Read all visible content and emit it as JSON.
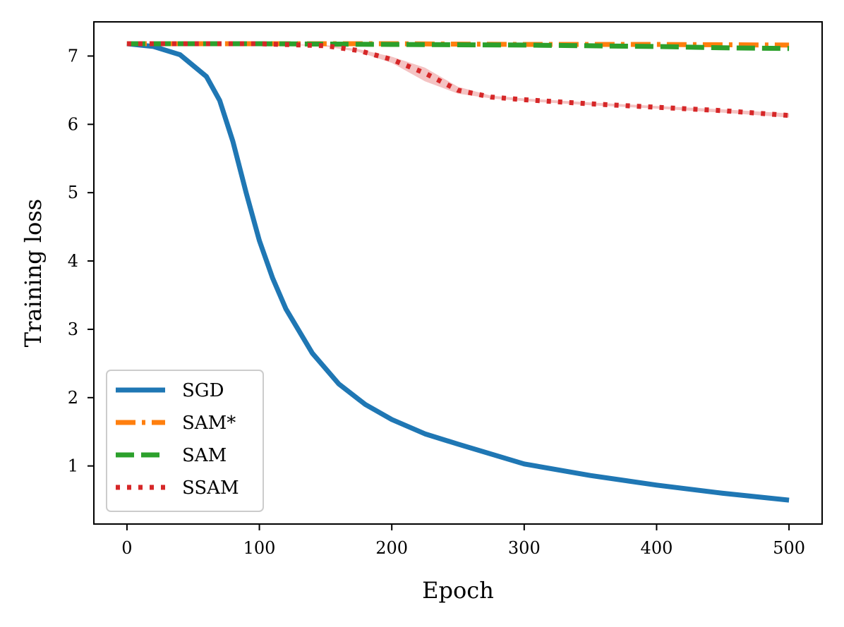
{
  "chart_data": {
    "type": "line",
    "title": "",
    "xlabel": "Epoch",
    "ylabel": "Training loss",
    "xlim": [
      -25,
      525
    ],
    "ylim": [
      0.15,
      7.5
    ],
    "xticks": [
      0,
      100,
      200,
      300,
      400,
      500
    ],
    "yticks": [
      1,
      2,
      3,
      4,
      5,
      6,
      7
    ],
    "grid": false,
    "legend_position": "lower-left",
    "series": [
      {
        "name": "SGD",
        "color": "#1f77b4",
        "style": "solid",
        "x": [
          0,
          20,
          40,
          60,
          70,
          80,
          90,
          100,
          110,
          120,
          140,
          160,
          180,
          200,
          225,
          250,
          300,
          350,
          400,
          450,
          500
        ],
        "y": [
          7.18,
          7.14,
          7.02,
          6.7,
          6.35,
          5.75,
          5.0,
          4.3,
          3.75,
          3.3,
          2.65,
          2.2,
          1.9,
          1.68,
          1.47,
          1.32,
          1.03,
          0.86,
          0.72,
          0.6,
          0.5
        ]
      },
      {
        "name": "SAM*",
        "color": "#ff7f0e",
        "style": "dashdot",
        "x": [
          0,
          100,
          200,
          300,
          400,
          500
        ],
        "y": [
          7.18,
          7.18,
          7.18,
          7.17,
          7.17,
          7.16
        ]
      },
      {
        "name": "SAM",
        "color": "#2ca02c",
        "style": "dashed",
        "x": [
          0,
          100,
          200,
          300,
          350,
          400,
          450,
          500
        ],
        "y": [
          7.18,
          7.18,
          7.17,
          7.16,
          7.15,
          7.14,
          7.12,
          7.11
        ]
      },
      {
        "name": "SSAM",
        "color": "#d62728",
        "style": "dotted",
        "x": [
          0,
          100,
          150,
          175,
          200,
          225,
          250,
          275,
          300,
          350,
          400,
          450,
          500
        ],
        "y": [
          7.18,
          7.18,
          7.15,
          7.08,
          6.95,
          6.75,
          6.5,
          6.4,
          6.36,
          6.3,
          6.25,
          6.2,
          6.13
        ],
        "band_upper": [
          7.18,
          7.18,
          7.16,
          7.1,
          6.99,
          6.83,
          6.55,
          6.42,
          6.38,
          6.32,
          6.27,
          6.22,
          6.16
        ],
        "band_lower": [
          7.18,
          7.18,
          7.14,
          7.06,
          6.9,
          6.63,
          6.45,
          6.38,
          6.34,
          6.28,
          6.23,
          6.17,
          6.1
        ]
      }
    ]
  }
}
